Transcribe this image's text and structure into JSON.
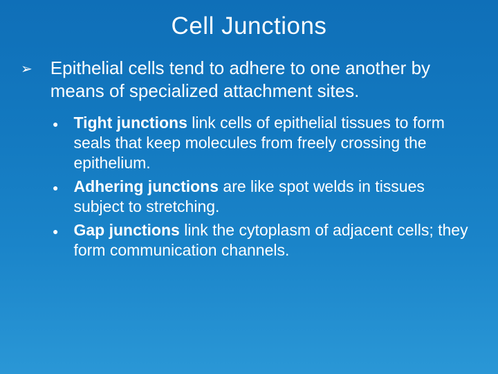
{
  "title": "Cell Junctions",
  "colors": {
    "bg_top": "#0f6fb8",
    "bg_bottom": "#2a97d6",
    "text": "#ffffff"
  },
  "typography": {
    "title_fontsize": 35,
    "level1_fontsize": 26,
    "level2_fontsize": 23,
    "font_family": "Arial"
  },
  "bullets": {
    "level1_glyph": "➢",
    "level2_glyph": "●"
  },
  "level1": {
    "text": "Epithelial cells tend to adhere to one another by means of specialized attachment sites."
  },
  "level2": [
    {
      "bold": "Tight junctions",
      "rest": " link cells of epithelial tissues to form seals that keep molecules from freely crossing the epithelium."
    },
    {
      "bold": "Adhering junctions",
      "rest": " are like spot welds in tissues subject to stretching."
    },
    {
      "bold": "Gap junctions",
      "rest": " link the cytoplasm of adjacent cells; they form communication channels."
    }
  ]
}
